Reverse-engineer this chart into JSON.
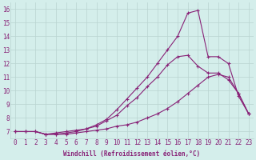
{
  "xlabel": "Windchill (Refroidissement éolien,°C)",
  "background_color": "#d4eeeb",
  "grid_color": "#b8d4d0",
  "line_color": "#882277",
  "xlim": [
    -0.5,
    23.5
  ],
  "ylim": [
    6.5,
    16.5
  ],
  "xticks": [
    0,
    1,
    2,
    3,
    4,
    5,
    6,
    7,
    8,
    9,
    10,
    11,
    12,
    13,
    14,
    15,
    16,
    17,
    18,
    19,
    20,
    21,
    22,
    23
  ],
  "yticks": [
    7,
    8,
    9,
    10,
    11,
    12,
    13,
    14,
    15,
    16
  ],
  "series": [
    [
      7.0,
      7.0,
      7.0,
      6.8,
      6.8,
      6.8,
      6.9,
      7.0,
      7.1,
      7.2,
      7.4,
      7.5,
      7.7,
      8.0,
      8.3,
      8.7,
      9.2,
      9.8,
      10.4,
      11.0,
      11.2,
      11.0,
      9.8,
      8.3
    ],
    [
      7.0,
      7.0,
      7.0,
      6.8,
      6.9,
      7.0,
      7.1,
      7.2,
      7.4,
      7.8,
      8.2,
      8.9,
      9.5,
      10.3,
      11.0,
      11.9,
      12.5,
      12.6,
      11.8,
      11.3,
      11.3,
      10.8,
      9.8,
      8.3
    ],
    [
      7.0,
      7.0,
      7.0,
      6.8,
      6.8,
      6.9,
      7.0,
      7.2,
      7.5,
      7.9,
      8.6,
      9.4,
      10.2,
      11.0,
      12.0,
      13.0,
      14.0,
      15.7,
      15.9,
      12.5,
      12.5,
      12.0,
      9.6,
      8.3
    ]
  ],
  "tick_fontsize": 5.5,
  "xlabel_fontsize": 5.5,
  "marker_size": 2.5,
  "line_width": 0.8
}
